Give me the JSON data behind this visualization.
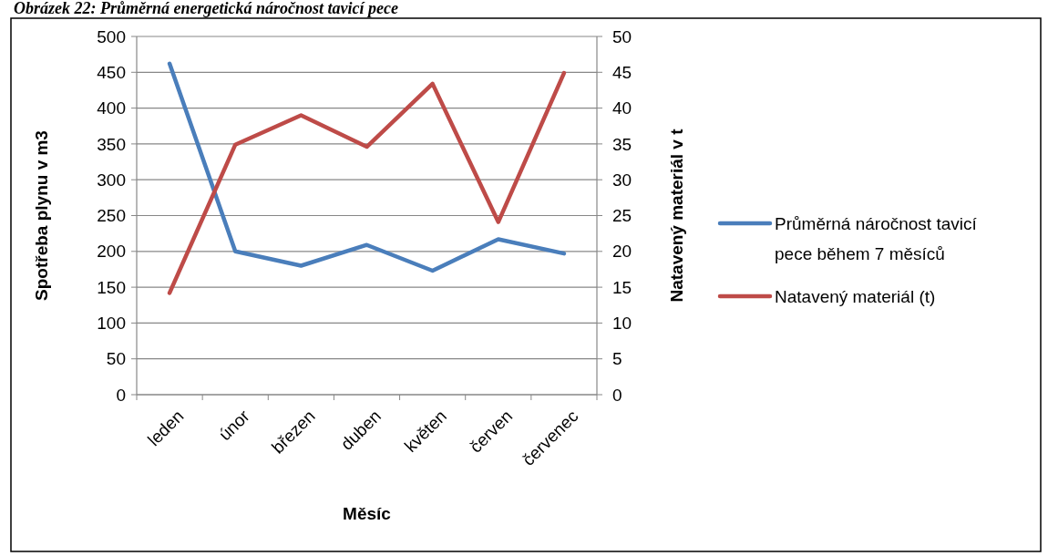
{
  "chart_data": {
    "type": "line",
    "title": "Obrázek 22: Průměrná energetická náročnost tavicí pece",
    "categories": [
      "leden",
      "únor",
      "březen",
      "duben",
      "květen",
      "červen",
      "červenec"
    ],
    "series": [
      {
        "name": "Průměrná náročnost tavicí pece během 7 měsíců",
        "color": "#4a7ebb",
        "values": [
          462,
          200,
          180,
          209,
          173,
          217,
          197
        ]
      },
      {
        "name": "Natavený materiál (t)",
        "color": "#be4b48",
        "axis": "y2",
        "values": [
          14.2,
          34.9,
          39,
          34.6,
          43.4,
          24.1,
          44.9
        ]
      }
    ],
    "xlabel": "Měsíc",
    "ylabel": "Spotřeba plynu v m3",
    "y2label": "Natavený materiál v t",
    "ylim": [
      0,
      500
    ],
    "yticks": [
      0,
      50,
      100,
      150,
      200,
      250,
      300,
      350,
      400,
      450,
      500
    ],
    "y2lim": [
      0,
      50
    ],
    "y2ticks": [
      0,
      5,
      10,
      15,
      20,
      25,
      30,
      35,
      40,
      45,
      50
    ],
    "grid": "y",
    "legend": "right",
    "marker": "none",
    "line_style": "solid"
  }
}
